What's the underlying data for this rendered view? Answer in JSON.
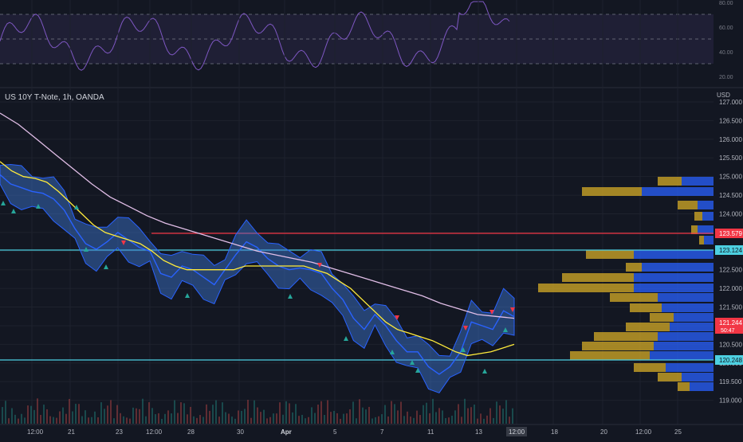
{
  "symbol": {
    "title": "US 10Y T-Note, 1h, OANDA",
    "currency": "USD"
  },
  "rsi_pane": {
    "levels": [
      "80.00",
      "60.00",
      "40.00",
      "20.00"
    ]
  },
  "price_axis": {
    "ticks": [
      "127.000",
      "126.500",
      "126.000",
      "125.500",
      "125.000",
      "124.500",
      "124.000",
      "123.500",
      "123.000",
      "122.500",
      "122.000",
      "121.500",
      "121.000",
      "120.500",
      "120.000",
      "119.500",
      "119.000"
    ]
  },
  "price_labels": [
    {
      "text": "123.579",
      "color": "#f23645"
    },
    {
      "text": "123.124",
      "color": "#4dd0e1"
    },
    {
      "text": "121.244",
      "countdown": "50:47",
      "color": "#f23645"
    },
    {
      "text": "120.248",
      "color": "#4dd0e1"
    }
  ],
  "time_axis": {
    "labels": [
      "12:00",
      "21",
      "23",
      "12:00",
      "28",
      "30",
      "Apr",
      "5",
      "7",
      "11",
      "13",
      "12:00",
      "18",
      "20",
      "12:00",
      "25"
    ]
  },
  "chart_data": {
    "type": "line",
    "title": "US 10Y T-Note, 1h, OANDA",
    "x_labels": [
      "12:00",
      "21",
      "23",
      "12:00",
      "28",
      "30",
      "Apr",
      "5",
      "7",
      "11",
      "13",
      "12:00"
    ],
    "y_range": [
      118.8,
      127.0
    ],
    "horizontal_levels": [
      {
        "value": 123.579,
        "color": "#f23645"
      },
      {
        "value": 123.124,
        "color": "#4dd0e1"
      },
      {
        "value": 120.248,
        "color": "#4dd0e1"
      }
    ],
    "series": [
      {
        "color": "#2962ff",
        "values": [
          125.05,
          124.8,
          124.7,
          124.6,
          124.55,
          124.4,
          124.1,
          123.6,
          123.2,
          123.05,
          123.25,
          123.5,
          123.3,
          123.1,
          123.0,
          122.4,
          122.3,
          122.6,
          122.5,
          122.3,
          122.1,
          122.5,
          122.9,
          123.25,
          123.1,
          122.8,
          122.6,
          122.5,
          122.55,
          122.5,
          122.4,
          122.0,
          121.7,
          121.2,
          120.9,
          121.3,
          121.0,
          120.6,
          120.3,
          120.3,
          119.9,
          119.7,
          119.9,
          120.3,
          121.1,
          121.0,
          120.9,
          121.4,
          121.24
        ]
      },
      {
        "color": "#ffeb3b",
        "values": [
          125.4,
          125.15,
          125.0,
          124.95,
          124.85,
          124.6,
          124.3,
          124.0,
          123.7,
          123.5,
          123.4,
          123.3,
          123.2,
          123.0,
          122.75,
          122.6,
          122.5,
          122.5,
          122.5,
          122.5,
          122.5,
          122.6,
          122.6,
          122.6,
          122.6,
          122.6,
          122.6,
          122.5,
          122.4,
          122.2,
          122.0,
          121.7,
          121.4,
          121.1,
          120.9,
          120.8,
          120.7,
          120.6,
          120.45,
          120.3,
          120.2,
          120.25,
          120.3,
          120.4,
          120.5
        ]
      },
      {
        "color": "#e1bee7",
        "values": [
          126.7,
          126.4,
          126.0,
          125.6,
          125.2,
          124.8,
          124.45,
          124.2,
          123.95,
          123.75,
          123.6,
          123.45,
          123.3,
          123.15,
          123.0,
          122.9,
          122.8,
          122.7,
          122.55,
          122.4,
          122.25,
          122.1,
          121.95,
          121.8,
          121.6,
          121.45,
          121.3,
          121.25,
          121.2
        ]
      }
    ],
    "rsi": {
      "levels": [
        80,
        60,
        40,
        20
      ]
    }
  }
}
